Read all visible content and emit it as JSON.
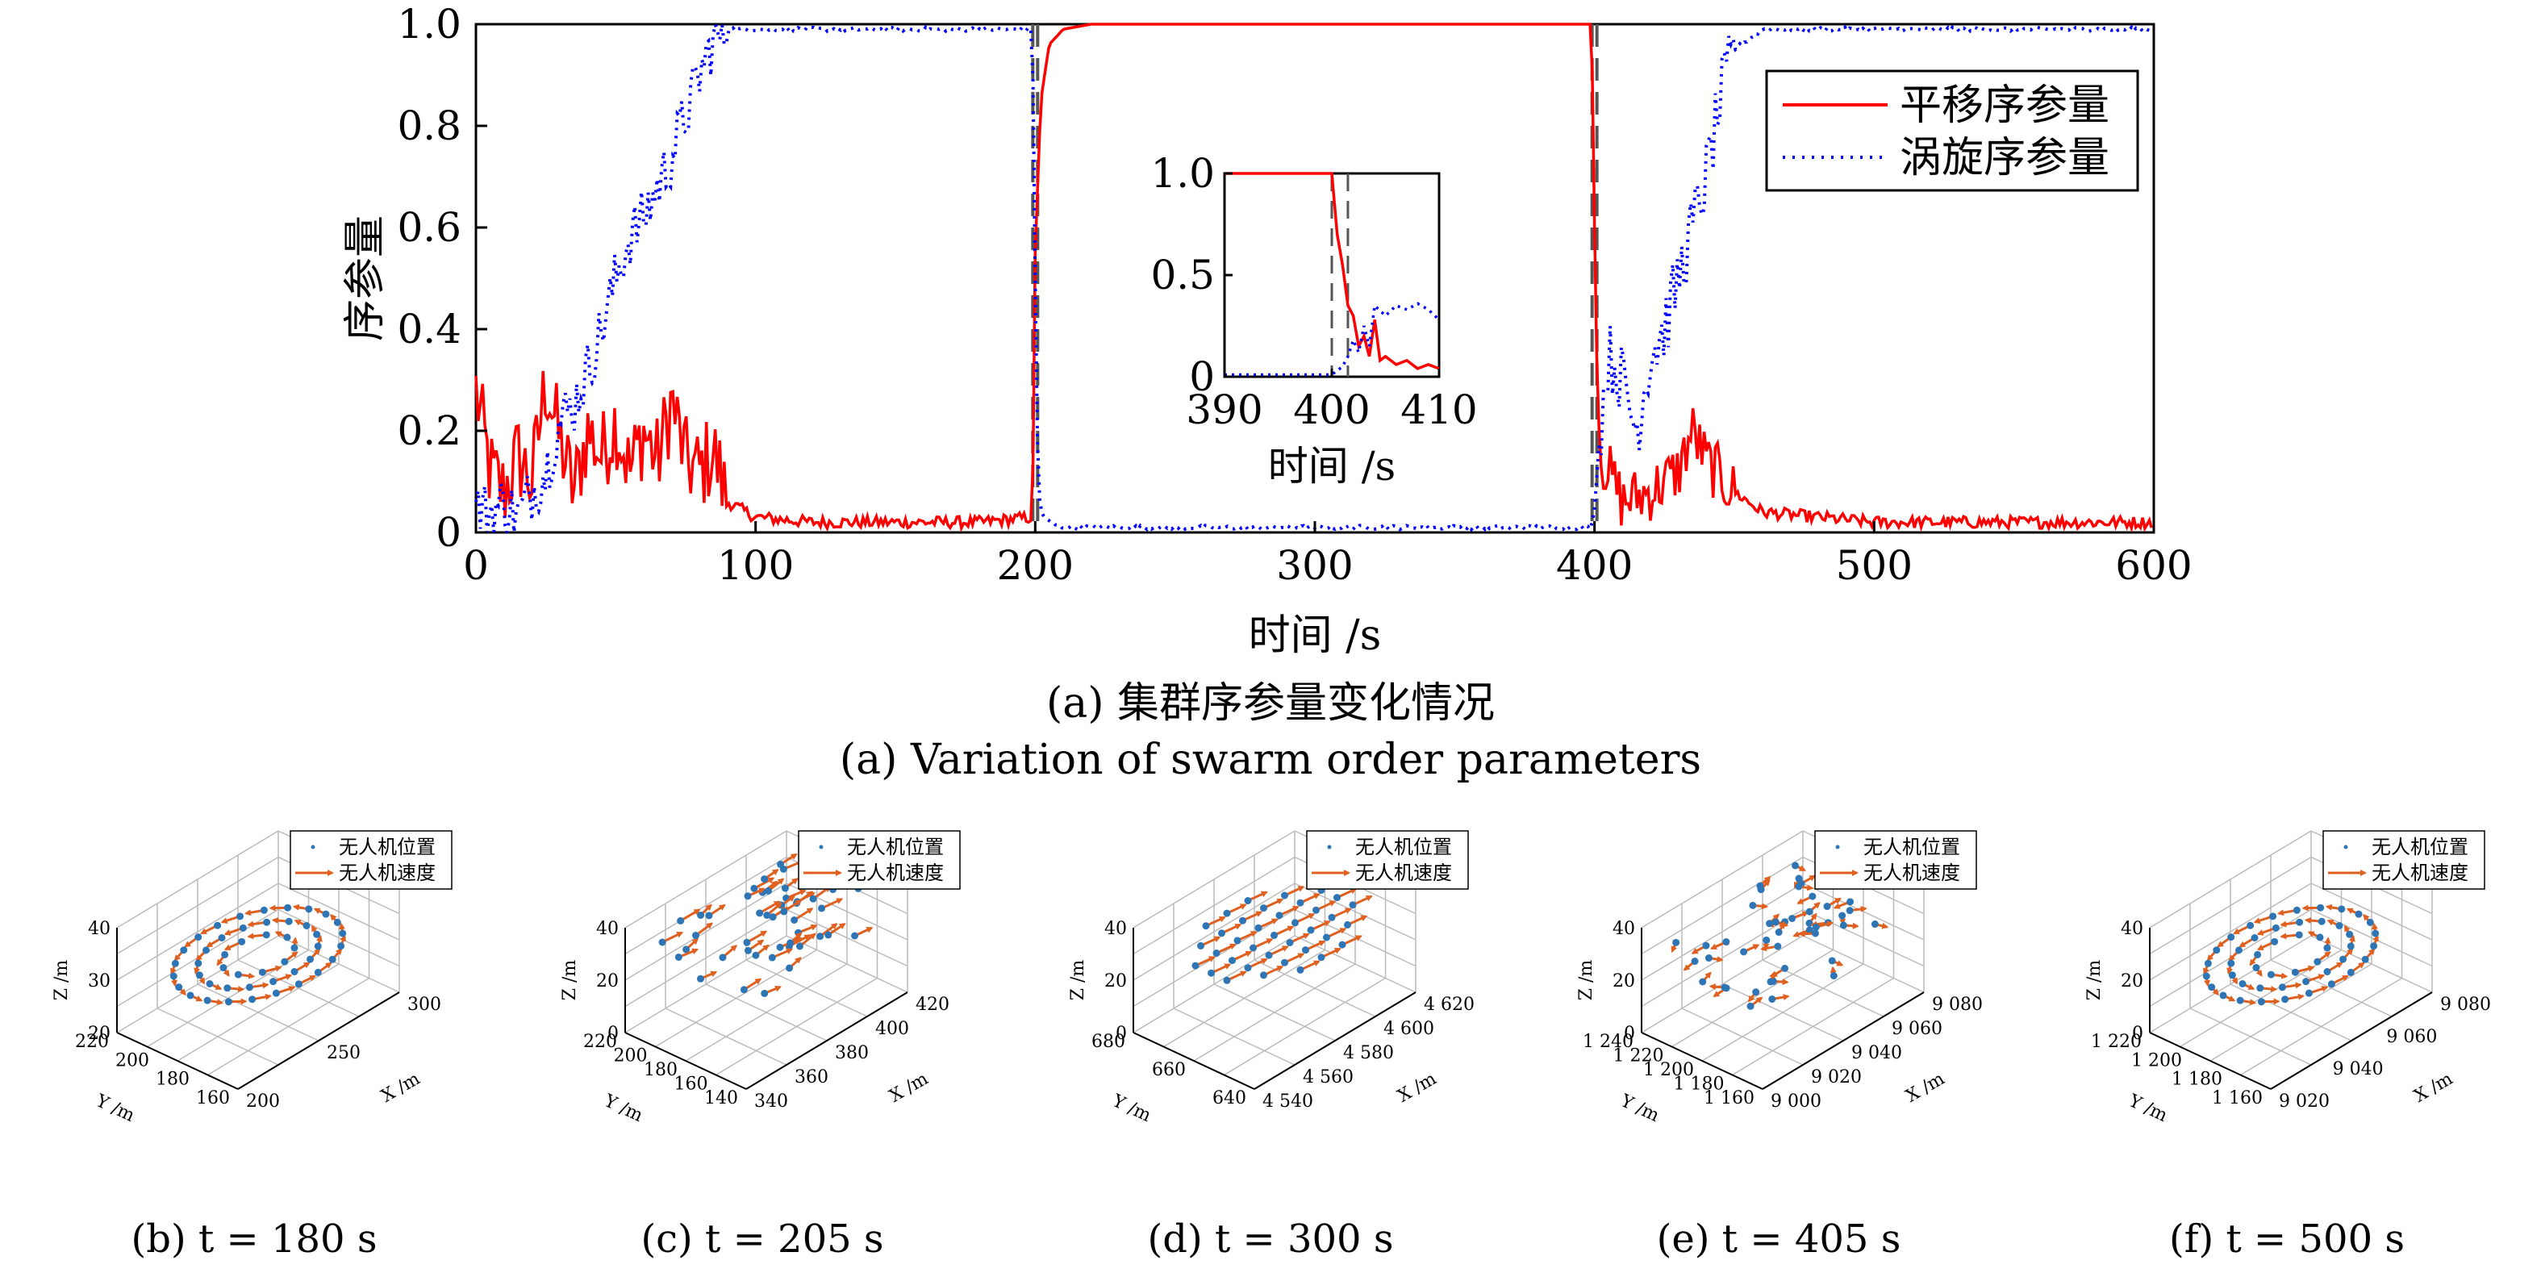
{
  "main_chart": {
    "xlabel": "时间 /s",
    "ylabel": "序参量",
    "xlim": [
      0,
      600
    ],
    "ylim": [
      0,
      1
    ],
    "xticks": [
      "0",
      "100",
      "200",
      "300",
      "400",
      "500",
      "600"
    ],
    "yticks": [
      "0",
      "0.2",
      "0.4",
      "0.6",
      "0.8",
      "1.0"
    ],
    "legend": [
      "平移序参量",
      "涡旋序参量"
    ],
    "colors": {
      "translation": "#ff0000",
      "vortex": "#0000ff",
      "dashed": "#555555"
    },
    "caption_cn": "(a) 集群序参量变化情况",
    "caption_en": "(a) Variation of swarm order parameters"
  },
  "inset": {
    "xlabel": "时间 /s",
    "xticks": [
      "390",
      "400",
      "410"
    ],
    "yticks": [
      "0",
      "0.5",
      "1.0"
    ],
    "xlim": [
      390,
      410
    ],
    "ylim": [
      0,
      1
    ]
  },
  "chart_data": [
    {
      "type": "line",
      "xlabel": "时间 /s",
      "ylabel": "序参量",
      "xlim": [
        0,
        600
      ],
      "ylim": [
        0,
        1
      ],
      "legend_position": "top-right",
      "series": [
        {
          "name": "平移序参量",
          "style": "solid",
          "x": [
            0,
            5,
            10,
            15,
            20,
            25,
            30,
            35,
            40,
            45,
            50,
            55,
            60,
            65,
            70,
            75,
            80,
            85,
            90,
            100,
            120,
            150,
            180,
            199,
            200,
            202,
            205,
            210,
            220,
            300,
            399,
            400,
            401,
            402,
            405,
            410,
            420,
            430,
            435,
            440,
            450,
            460,
            480,
            500,
            550,
            600
          ],
          "y": [
            0.28,
            0.12,
            0.08,
            0.15,
            0.1,
            0.3,
            0.18,
            0.08,
            0.2,
            0.15,
            0.22,
            0.12,
            0.2,
            0.14,
            0.26,
            0.14,
            0.12,
            0.16,
            0.06,
            0.03,
            0.02,
            0.02,
            0.02,
            0.03,
            0.55,
            0.85,
            0.96,
            0.99,
            1.0,
            1.0,
            1.0,
            0.6,
            0.3,
            0.15,
            0.12,
            0.06,
            0.08,
            0.12,
            0.2,
            0.14,
            0.08,
            0.04,
            0.03,
            0.02,
            0.02,
            0.02
          ]
        },
        {
          "name": "涡旋序参量",
          "style": "dotted",
          "x": [
            0,
            5,
            10,
            15,
            20,
            25,
            30,
            35,
            40,
            45,
            50,
            55,
            60,
            65,
            70,
            75,
            80,
            85,
            90,
            100,
            150,
            199,
            200,
            201,
            202,
            205,
            210,
            300,
            399,
            400,
            402,
            405,
            410,
            415,
            420,
            425,
            430,
            435,
            440,
            445,
            450,
            460,
            500,
            600
          ],
          "y": [
            0.05,
            0.04,
            0.06,
            0.03,
            0.08,
            0.12,
            0.22,
            0.25,
            0.32,
            0.4,
            0.5,
            0.58,
            0.62,
            0.68,
            0.74,
            0.82,
            0.9,
            0.97,
            0.99,
            0.99,
            0.99,
            0.99,
            0.5,
            0.1,
            0.04,
            0.02,
            0.01,
            0.01,
            0.01,
            0.05,
            0.2,
            0.35,
            0.3,
            0.2,
            0.35,
            0.4,
            0.5,
            0.6,
            0.7,
            0.85,
            0.95,
            0.99,
            0.99,
            0.99
          ]
        }
      ],
      "vertical_dashed_lines": [
        200,
        400
      ]
    },
    {
      "type": "line",
      "role": "inset",
      "xlabel": "时间 /s",
      "xlim": [
        390,
        410
      ],
      "ylim": [
        0,
        1
      ],
      "series": [
        {
          "name": "平移序参量",
          "style": "solid",
          "x": [
            390,
            392,
            394,
            396,
            398,
            400,
            400.5,
            401,
            401.5,
            402,
            402.5,
            403,
            403.5,
            404,
            404.5,
            405,
            406,
            407,
            408,
            409,
            410
          ],
          "y": [
            1.0,
            1.0,
            1.0,
            1.0,
            1.0,
            1.0,
            0.7,
            0.55,
            0.35,
            0.3,
            0.15,
            0.2,
            0.1,
            0.28,
            0.08,
            0.1,
            0.06,
            0.08,
            0.04,
            0.06,
            0.04
          ]
        },
        {
          "name": "涡旋序参量",
          "style": "dotted",
          "x": [
            390,
            392,
            394,
            396,
            398,
            400,
            401,
            401.5,
            402,
            402.5,
            403,
            403.5,
            404,
            405,
            406,
            407,
            408,
            409,
            410
          ],
          "y": [
            0.01,
            0.01,
            0.01,
            0.01,
            0.01,
            0.01,
            0.05,
            0.1,
            0.18,
            0.12,
            0.25,
            0.15,
            0.35,
            0.3,
            0.35,
            0.33,
            0.36,
            0.33,
            0.28
          ]
        }
      ],
      "vertical_dashed_lines": [
        400,
        401.5
      ]
    }
  ],
  "subplots": [
    {
      "caption": "(b) t = 180 s",
      "pattern": "vortex",
      "z_ticks": [
        "20",
        "30",
        "40"
      ],
      "y_ticks": [
        "160",
        "180",
        "200",
        "220"
      ],
      "x_ticks": [
        "200",
        "250",
        "300"
      ]
    },
    {
      "caption": "(c) t = 205 s",
      "pattern": "transition",
      "z_ticks": [
        "0",
        "20",
        "40"
      ],
      "y_ticks": [
        "140",
        "160",
        "180",
        "200",
        "220"
      ],
      "x_ticks": [
        "340",
        "360",
        "380",
        "400",
        "420"
      ]
    },
    {
      "caption": "(d) t = 300 s",
      "pattern": "translation",
      "z_ticks": [
        "0",
        "20",
        "40"
      ],
      "y_ticks": [
        "640",
        "660",
        "680"
      ],
      "x_ticks": [
        "4 540",
        "4 560",
        "4 580",
        "4 600",
        "4 620"
      ]
    },
    {
      "caption": "(e) t = 405 s",
      "pattern": "random",
      "z_ticks": [
        "0",
        "20",
        "40"
      ],
      "y_ticks": [
        "1 160",
        "1 180",
        "1 200",
        "1 220",
        "1 240"
      ],
      "x_ticks": [
        "9 000",
        "9 020",
        "9 040",
        "9 060",
        "9 080"
      ]
    },
    {
      "caption": "(f) t = 500 s",
      "pattern": "vortex",
      "z_ticks": [
        "0",
        "20",
        "40"
      ],
      "y_ticks": [
        "1 160",
        "1 180",
        "1 200",
        "1 220"
      ],
      "x_ticks": [
        "9 020",
        "9 040",
        "9 060",
        "9 080"
      ]
    }
  ],
  "subplot_common": {
    "legend_position": "upper-left",
    "legend": [
      "无人机位置",
      "无人机速度"
    ],
    "z_label": "Z /m",
    "y_label": "Y /m",
    "x_label": "X /m",
    "colors": {
      "position": "#2e75b6",
      "velocity": "#e06020"
    }
  }
}
